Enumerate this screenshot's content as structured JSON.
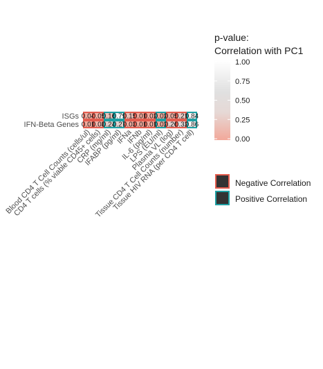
{
  "chart_data": {
    "type": "heatmap",
    "rows": [
      "ISGs",
      "IFN-Beta Genes"
    ],
    "columns": [
      "Blood CD4 T Cell Counts (cells/ul)",
      "CD4 T cells (% viable CD45+ cells)",
      "CRP (mg/ml)",
      "IFABP (pg/ml)",
      "IFNa",
      "IFNb",
      "IL-6 (pg/ml)",
      "LPS (EU/ml)",
      "Plasma VL (log)",
      "Tissue CD4 T Cell Counts (number)",
      "Tissue HIV RNA (per CD4 T cell)"
    ],
    "p_values": [
      [
        0.04,
        0.05,
        0.16,
        0.79,
        0.15,
        0.01,
        0.02,
        0.02,
        0.05,
        0.21,
        0.84
      ],
      [
        0.01,
        0.08,
        0.24,
        0.27,
        0.03,
        0.01,
        0.01,
        0.02,
        0.26,
        0.32,
        0.86
      ]
    ],
    "p_labels": [
      [
        "0.04",
        "0.05",
        "0.16",
        "0.79",
        "0.15",
        "0.01",
        "0.02",
        "0.02",
        "0.05",
        "0.21",
        "0.84"
      ],
      [
        "0.01",
        "0.08",
        "0.24",
        "0.27",
        "0.03",
        "0.01",
        "0.01",
        "0.02",
        "0.26",
        "0.32",
        "0.86"
      ]
    ],
    "correlation_sign": [
      [
        "negative",
        "negative",
        "positive",
        "positive",
        "negative",
        "negative",
        "negative",
        "positive",
        "negative",
        "negative",
        "positive"
      ],
      [
        "negative",
        "negative",
        "positive",
        "positive",
        "negative",
        "negative",
        "negative",
        "positive",
        "negative",
        "negative",
        "positive"
      ]
    ],
    "legend": {
      "title_line1": "p-value:",
      "title_line2": "Correlation with PC1",
      "ticks": [
        1.0,
        0.75,
        0.5,
        0.25,
        0.0
      ],
      "tick_labels": [
        "1.00",
        "0.75",
        "0.50",
        "0.25",
        "0.00"
      ],
      "range": [
        0,
        1
      ],
      "low_color": "#f2a89a",
      "high_color": "#ffffff",
      "border_entries": [
        {
          "label": "Negative Correlation",
          "color": "#e45d4f"
        },
        {
          "label": "Positive Correlation",
          "color": "#1fa0a3"
        }
      ],
      "swatch_fill": "#333333"
    }
  }
}
